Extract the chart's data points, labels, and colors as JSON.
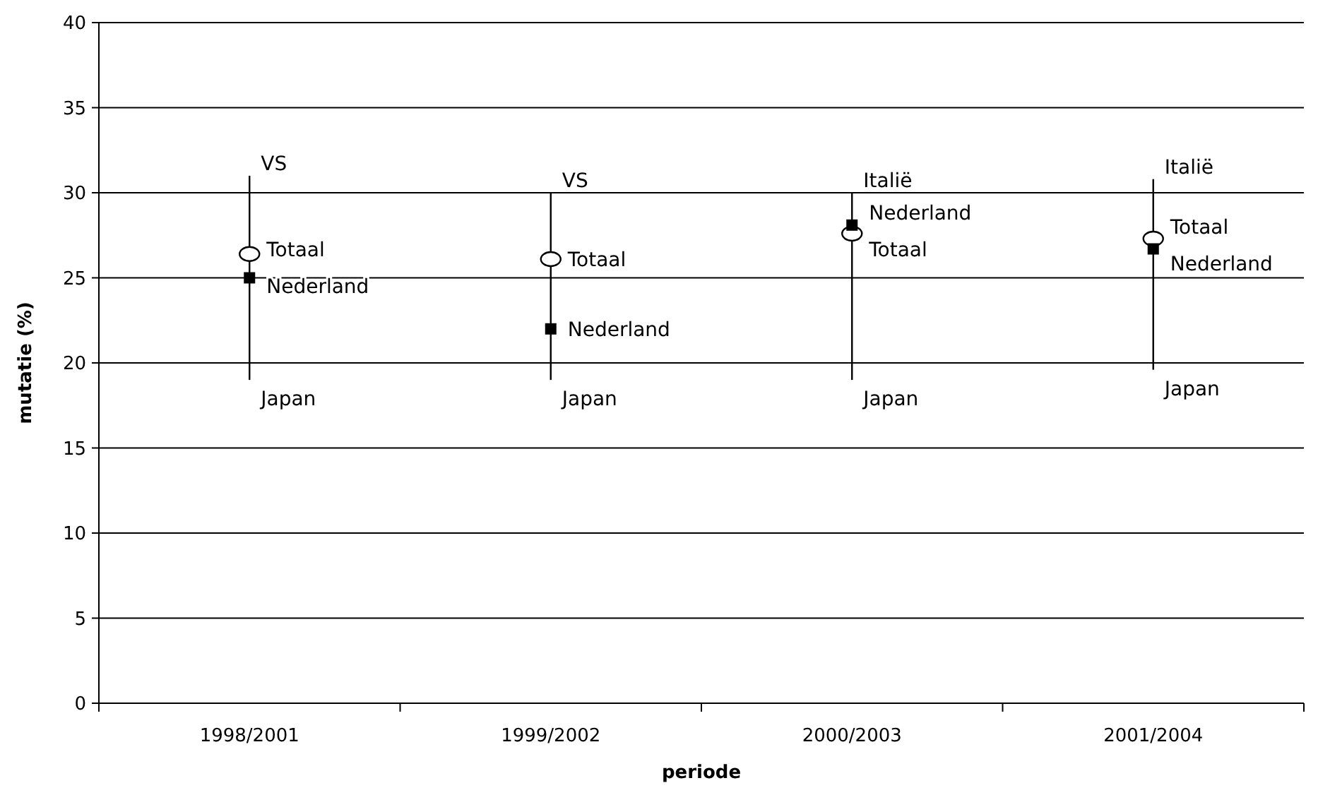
{
  "chart_data": {
    "type": "bar",
    "xlabel": "periode",
    "ylabel": "mutatie (%)",
    "categories": [
      "1998/2001",
      "1999/2002",
      "2000/2003",
      "2001/2004"
    ],
    "ylim": [
      0,
      40
    ],
    "yticks": [
      0,
      5,
      10,
      15,
      20,
      25,
      30,
      35,
      40
    ],
    "grid": "y",
    "series": [
      {
        "color": "#000000",
        "base": [
          19,
          19,
          19,
          19.6
        ],
        "values": [
          12,
          11,
          11,
          11.2
        ]
      },
      {
        "type": "scatter",
        "name": "Totaal",
        "marker": "circle",
        "color": "#ffffff",
        "values": [
          26.4,
          26.1,
          27.6,
          27.3
        ]
      },
      {
        "type": "scatter",
        "name": "Nederland",
        "marker": "square",
        "color": "#000000",
        "values": [
          25,
          22,
          28.1,
          26.7
        ]
      }
    ],
    "annotations": [
      {
        "text": "VS",
        "x": "1998/2001",
        "y": 31
      },
      {
        "text": "VS",
        "x": "1999/2002",
        "y": 30
      },
      {
        "text": "Italië",
        "x": "2000/2003",
        "y": 30
      },
      {
        "text": "Italië",
        "x": "2001/2004",
        "y": 30.8
      },
      {
        "text": "Japan",
        "x": "1998/2001",
        "y": 19
      },
      {
        "text": "Japan",
        "x": "1999/2002",
        "y": 19
      },
      {
        "text": "Japan",
        "x": "2000/2003",
        "y": 19
      },
      {
        "text": "Japan",
        "x": "2001/2004",
        "y": 19.6
      }
    ]
  }
}
